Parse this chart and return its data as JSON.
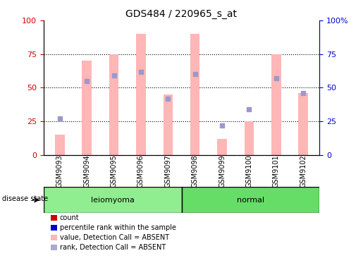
{
  "title": "GDS484 / 220965_s_at",
  "samples": [
    "GSM9093",
    "GSM9094",
    "GSM9095",
    "GSM9096",
    "GSM9097",
    "GSM9098",
    "GSM9099",
    "GSM9100",
    "GSM9101",
    "GSM9102"
  ],
  "bar_heights": [
    15,
    70,
    75,
    90,
    45,
    90,
    12,
    25,
    75,
    46
  ],
  "dot_values": [
    27,
    55,
    59,
    62,
    42,
    60,
    22,
    34,
    57,
    46
  ],
  "bar_color": "#FFB6B6",
  "dot_color": "#9999CC",
  "leiomyoma_color": "#90EE90",
  "normal_color": "#66DD66",
  "left_ylabel_color": "#CC0000",
  "right_ylabel_color": "#0000CC",
  "grid_values": [
    25,
    50,
    75
  ],
  "legend_items": [
    {
      "label": "count",
      "color": "#CC0000"
    },
    {
      "label": "percentile rank within the sample",
      "color": "#0000CC"
    },
    {
      "label": "value, Detection Call = ABSENT",
      "color": "#FFB6B6"
    },
    {
      "label": "rank, Detection Call = ABSENT",
      "color": "#AAAACC"
    }
  ],
  "disease_state_label": "disease state",
  "bar_width": 0.35,
  "figsize": [
    5.15,
    3.66
  ],
  "dpi": 100
}
